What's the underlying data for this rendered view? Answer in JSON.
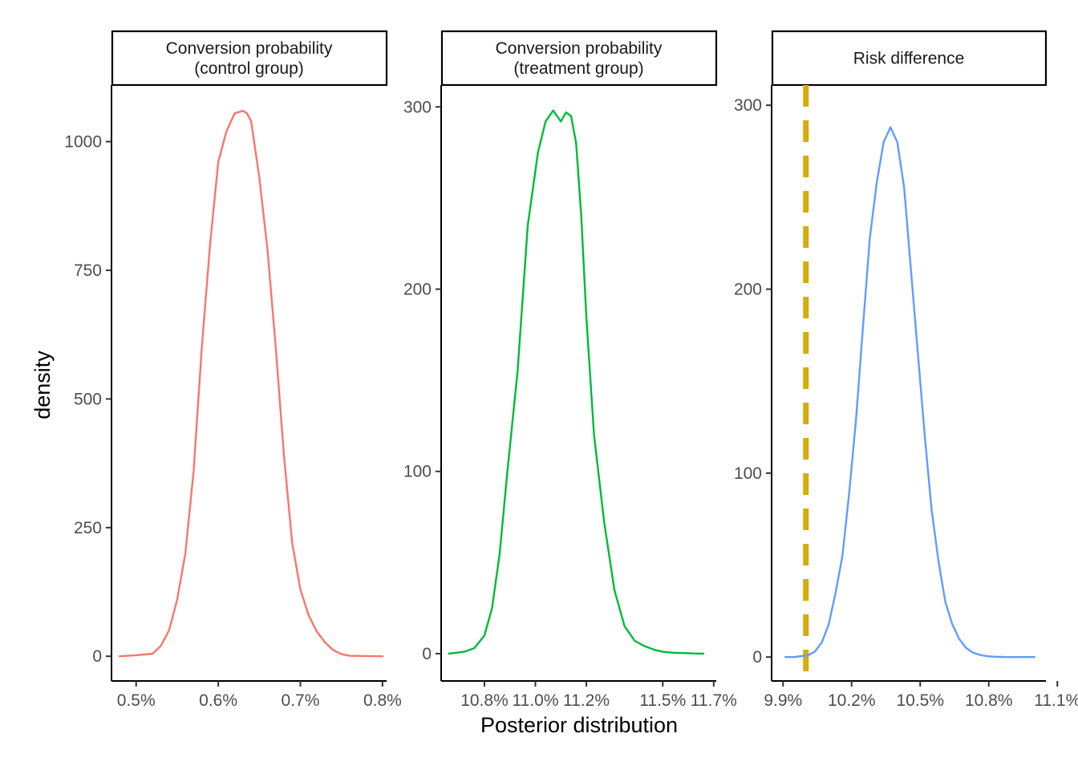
{
  "chart_data": {
    "type": "line",
    "xlabel": "Posterior distribution",
    "ylabel": "density",
    "panels": [
      {
        "strip": [
          "Conversion probability",
          "(control group)"
        ],
        "color": "#F8766D",
        "xlim": [
          0.0047,
          0.00805
        ],
        "ylim": [
          -48,
          1110
        ],
        "xticks": [
          0.005,
          0.006,
          0.007,
          0.008
        ],
        "xtick_labels": [
          "0.5%",
          "0.6%",
          "0.7%",
          "0.8%"
        ],
        "yticks": [
          0,
          250,
          500,
          750,
          1000
        ],
        "ytick_labels": [
          "0",
          "250",
          "500",
          "750",
          "1000"
        ],
        "series": [
          {
            "x": [
              0.0048,
              0.005,
              0.0052,
              0.0053,
              0.0054,
              0.0055,
              0.0056,
              0.0057,
              0.0058,
              0.0059,
              0.006,
              0.0061,
              0.0062,
              0.0063,
              0.00635,
              0.0064,
              0.0065,
              0.0066,
              0.0067,
              0.0068,
              0.0069,
              0.007,
              0.0071,
              0.0072,
              0.0073,
              0.0074,
              0.0075,
              0.0076,
              0.0078,
              0.008
            ],
            "y": [
              0,
              2,
              5,
              20,
              50,
              110,
              200,
              360,
              600,
              800,
              960,
              1020,
              1055,
              1060,
              1055,
              1040,
              930,
              790,
              600,
              390,
              220,
              130,
              80,
              48,
              27,
              12,
              4,
              1,
              0.5,
              0
            ]
          }
        ]
      },
      {
        "strip": [
          "Conversion probability",
          "(treatment group)"
        ],
        "color": "#00BA38",
        "xlim": [
          0.1063,
          0.1171
        ],
        "ylim": [
          -15,
          312
        ],
        "xticks": [
          0.108,
          0.11,
          0.112,
          0.115,
          0.117
        ],
        "xtick_labels": [
          "10.8%",
          "11.0%",
          "11.2%",
          "11.5%",
          "11.7%"
        ],
        "yticks": [
          0,
          100,
          200,
          300
        ],
        "ytick_labels": [
          "0",
          "100",
          "200",
          "300"
        ],
        "series": [
          {
            "x": [
              0.1066,
              0.1072,
              0.1076,
              0.108,
              0.1083,
              0.1086,
              0.1089,
              0.1093,
              0.1097,
              0.1101,
              0.1104,
              0.1107,
              0.111,
              0.1112,
              0.1114,
              0.1116,
              0.1118,
              0.112,
              0.1123,
              0.1127,
              0.1131,
              0.1135,
              0.1139,
              0.1143,
              0.1147,
              0.115,
              0.1154,
              0.1158,
              0.1162,
              0.1166
            ],
            "y": [
              0,
              1,
              3,
              10,
              25,
              55,
              100,
              155,
              235,
              275,
              292,
              298,
              292,
              297,
              295,
              280,
              240,
              185,
              120,
              72,
              35,
              15,
              7,
              4,
              2,
              1,
              0.5,
              0.3,
              0.1,
              0
            ]
          }
        ]
      },
      {
        "strip": [
          "Risk difference"
        ],
        "color": "#619CFF",
        "xlim": [
          0.0985,
          0.1105
        ],
        "ylim": [
          -13,
          311
        ],
        "xticks": [
          0.099,
          0.102,
          0.105,
          0.108,
          0.111
        ],
        "xtick_labels": [
          "9.9%",
          "10.2%",
          "10.5%",
          "10.8%",
          "11.1%"
        ],
        "yticks": [
          0,
          100,
          200,
          300
        ],
        "ytick_labels": [
          "0",
          "100",
          "200",
          "300"
        ],
        "reference_line": {
          "x": 0.1,
          "color": "#D4AC0D",
          "style": "dashed"
        },
        "series": [
          {
            "x": [
              0.0991,
              0.0995,
              0.0998,
              0.1001,
              0.1004,
              0.1007,
              0.101,
              0.1013,
              0.1016,
              0.1019,
              0.1022,
              0.1025,
              0.1028,
              0.1031,
              0.1034,
              0.1037,
              0.104,
              0.1043,
              0.1046,
              0.1049,
              0.1052,
              0.1055,
              0.1058,
              0.1061,
              0.1064,
              0.1067,
              0.107,
              0.1073,
              0.1076,
              0.1079,
              0.1082,
              0.1085,
              0.1088,
              0.1091,
              0.1094,
              0.1097,
              0.11
            ],
            "y": [
              0,
              0,
              0.5,
              1,
              3,
              8,
              18,
              35,
              55,
              90,
              130,
              180,
              228,
              258,
              280,
              288,
              280,
              255,
              210,
              165,
              120,
              80,
              52,
              30,
              18,
              10,
              5,
              2.5,
              1.2,
              0.5,
              0.2,
              0.1,
              0,
              0,
              0,
              0,
              0
            ]
          }
        ]
      }
    ]
  }
}
